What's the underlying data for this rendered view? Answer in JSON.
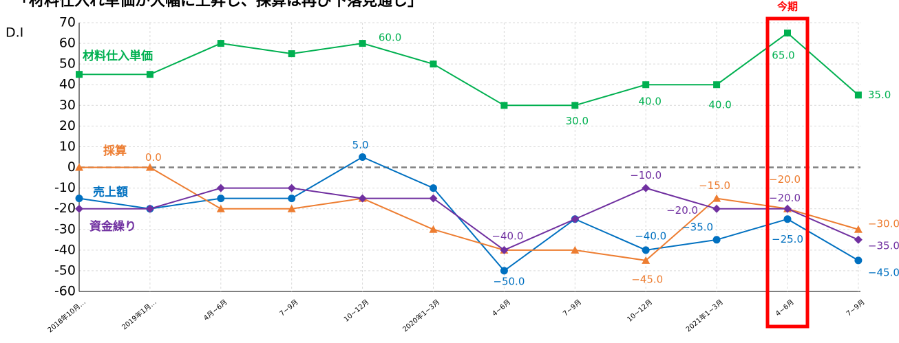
{
  "chart_data": {
    "type": "line",
    "title": "「材料仕入れ単価が大幅に上昇し、採算は再び下落見通し」",
    "y_label": "D.I",
    "annotation": "今期",
    "categories": [
      "2018年10月…",
      "2019年1月…",
      "4月~6月",
      "7~9月",
      "10~12月",
      "2020年1~3月",
      "4~6月",
      "7~9月",
      "10~12月",
      "2021年1~3月",
      "4~6月",
      "7~9月"
    ],
    "series": [
      {
        "name": "材料仕入単価",
        "color": "#00b050",
        "marker": "square",
        "values": [
          45,
          45,
          60,
          55,
          60,
          50,
          30,
          30,
          40,
          40,
          65,
          35
        ],
        "value_labels": [
          null,
          null,
          null,
          null,
          "60.0",
          null,
          null,
          "30.0",
          "40.0",
          "40.0",
          "65.0",
          "35.0"
        ]
      },
      {
        "name": "売上額",
        "color": "#0070c0",
        "marker": "circle",
        "values": [
          -15,
          -20,
          -15,
          -15,
          5,
          -10,
          -50,
          -25,
          -40,
          -35,
          -25,
          -45
        ],
        "value_labels": [
          null,
          null,
          null,
          null,
          "5.0",
          null,
          "−50.0",
          null,
          "−40.0",
          "−35.0",
          "−25.0",
          "−45.0"
        ]
      },
      {
        "name": "採算",
        "color": "#ed7d31",
        "marker": "triangle",
        "values": [
          0,
          0,
          -20,
          -20,
          -15,
          -30,
          -40,
          -40,
          -45,
          -15,
          -20,
          -30
        ],
        "value_labels": [
          null,
          "0.0",
          null,
          null,
          null,
          null,
          null,
          null,
          "−45.0",
          "−15.0",
          "−20.0",
          "−30.0"
        ]
      },
      {
        "name": "資金繰り",
        "color": "#7030a0",
        "marker": "diamond",
        "values": [
          -20,
          -20,
          -10,
          -10,
          -15,
          -15,
          -40,
          -25,
          -10,
          -20,
          -20,
          -35
        ],
        "value_labels": [
          null,
          null,
          null,
          null,
          null,
          null,
          "−40.0",
          null,
          "−10.0",
          "−20.0",
          "−20.0",
          "−35.0"
        ]
      }
    ],
    "ylim": [
      -60,
      70
    ],
    "yticks": [
      -60,
      -50,
      -40,
      -30,
      -20,
      -10,
      0,
      10,
      20,
      30,
      40,
      50,
      60,
      70
    ],
    "grid": true,
    "highlight_index": 10
  }
}
